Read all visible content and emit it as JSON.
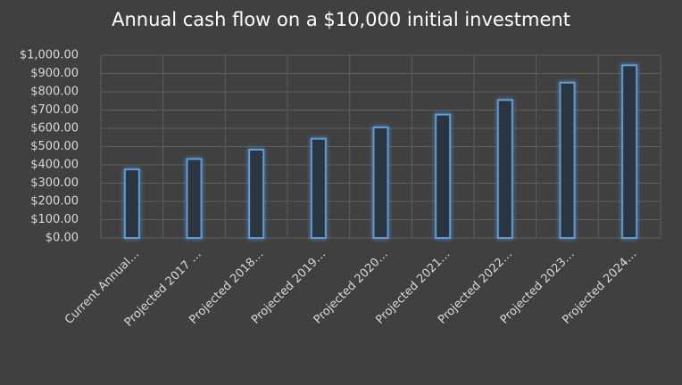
{
  "chart_data": {
    "type": "bar",
    "title": "Annual cash flow on a $10,000 initial investment",
    "categories": [
      "Current Annual…",
      "Projected 2017 …",
      "Projected 2018…",
      "Projected 2019…",
      "Projected 2020…",
      "Projected 2021…",
      "Projected 2022…",
      "Projected 2023…",
      "Projected 2024…"
    ],
    "values": [
      375,
      432,
      483,
      543,
      605,
      675,
      755,
      850,
      945
    ],
    "color": "#5b9bd5",
    "ylim": [
      0,
      1000
    ],
    "yticks": [
      {
        "value": 0,
        "label": "$0.00"
      },
      {
        "value": 100,
        "label": "$100.00"
      },
      {
        "value": 200,
        "label": "$200.00"
      },
      {
        "value": 300,
        "label": "$300.00"
      },
      {
        "value": 400,
        "label": "$400.00"
      },
      {
        "value": 500,
        "label": "$500.00"
      },
      {
        "value": 600,
        "label": "$600.00"
      },
      {
        "value": 700,
        "label": "$700.00"
      },
      {
        "value": 800,
        "label": "$800.00"
      },
      {
        "value": 900,
        "label": "$900.00"
      },
      {
        "value": 1000,
        "label": "$1,000.00"
      }
    ],
    "grid": true
  }
}
